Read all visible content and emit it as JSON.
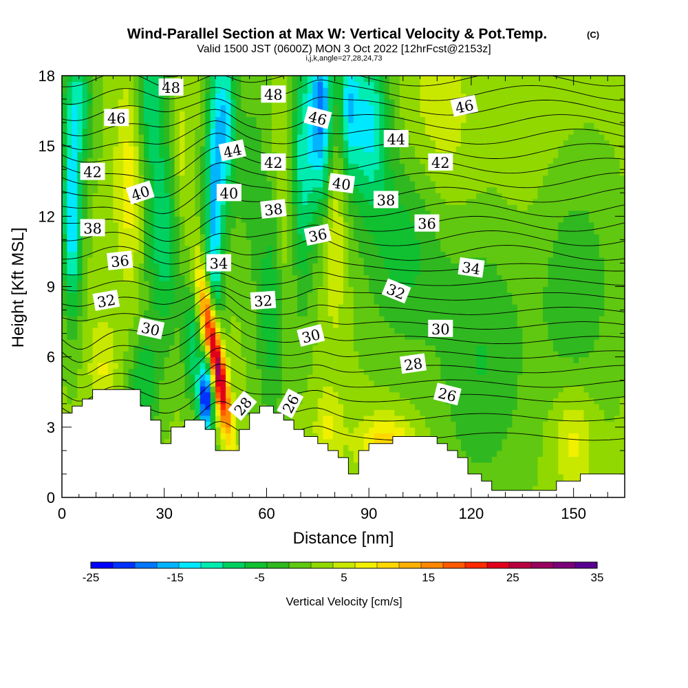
{
  "chart_data": {
    "type": "heatmap",
    "title": "Wind-Parallel Section at Max W: Vertical Velocity & Pot.Temp.",
    "title_mark": "(C)",
    "subtitle": "Valid 1500 JST (0600Z) MON 3 Oct 2022 [12hrFcst@2153z]",
    "subtitle2": "i,j,k,angle=27,28,24,73",
    "xlabel": "Distance [nm]",
    "ylabel": "Height [Kft MSL]",
    "xlim": [
      0,
      165
    ],
    "ylim": [
      0,
      18
    ],
    "x_ticks": [
      0,
      30,
      60,
      90,
      120,
      150
    ],
    "y_ticks": [
      0,
      3,
      6,
      9,
      12,
      15,
      18
    ],
    "colorbar": {
      "label": "Vertical Velocity [cm/s]",
      "min": -25,
      "max": 35,
      "tick_values": [
        -25,
        -15,
        -5,
        5,
        15,
        25,
        35
      ],
      "colors": [
        "#0000ff",
        "#0033ff",
        "#0077ff",
        "#00b4ff",
        "#00e8ff",
        "#00ecb0",
        "#00d060",
        "#10c030",
        "#30b820",
        "#60c810",
        "#90d800",
        "#c8e800",
        "#f0f000",
        "#ffd800",
        "#ffb000",
        "#ff8800",
        "#ff5a00",
        "#ff2a00",
        "#e0001c",
        "#b80040",
        "#980060",
        "#7a0078",
        "#5a0090"
      ]
    },
    "theta_contours": [
      26,
      28,
      30,
      32,
      34,
      36,
      38,
      40,
      42,
      44,
      46,
      48
    ],
    "contour_labels": [
      {
        "value": 48,
        "x": 32,
        "y": 17.5,
        "angle": 0
      },
      {
        "value": 48,
        "x": 62,
        "y": 17.2,
        "angle": 0
      },
      {
        "value": 46,
        "x": 16,
        "y": 16.2,
        "angle": 0
      },
      {
        "value": 46,
        "x": 75,
        "y": 16.2,
        "angle": 15
      },
      {
        "value": 46,
        "x": 118,
        "y": 16.7,
        "angle": -12
      },
      {
        "value": 44,
        "x": 50,
        "y": 14.8,
        "angle": -12
      },
      {
        "value": 44,
        "x": 98,
        "y": 15.3,
        "angle": 0
      },
      {
        "value": 42,
        "x": 9,
        "y": 13.9,
        "angle": 0
      },
      {
        "value": 42,
        "x": 62,
        "y": 14.3,
        "angle": 0
      },
      {
        "value": 42,
        "x": 111,
        "y": 14.3,
        "angle": 0
      },
      {
        "value": 40,
        "x": 23,
        "y": 13.0,
        "angle": -18
      },
      {
        "value": 40,
        "x": 49,
        "y": 13.0,
        "angle": 0
      },
      {
        "value": 40,
        "x": 82,
        "y": 13.4,
        "angle": 8
      },
      {
        "value": 38,
        "x": 9,
        "y": 11.5,
        "angle": 0
      },
      {
        "value": 38,
        "x": 62,
        "y": 12.3,
        "angle": -6
      },
      {
        "value": 38,
        "x": 95,
        "y": 12.7,
        "angle": 0
      },
      {
        "value": 36,
        "x": 17,
        "y": 10.1,
        "angle": -6
      },
      {
        "value": 36,
        "x": 75,
        "y": 11.2,
        "angle": -12
      },
      {
        "value": 36,
        "x": 107,
        "y": 11.7,
        "angle": 0
      },
      {
        "value": 34,
        "x": 46,
        "y": 10.0,
        "angle": 0
      },
      {
        "value": 34,
        "x": 120,
        "y": 9.8,
        "angle": 8
      },
      {
        "value": 32,
        "x": 13,
        "y": 8.4,
        "angle": -10
      },
      {
        "value": 32,
        "x": 59,
        "y": 8.4,
        "angle": -4
      },
      {
        "value": 32,
        "x": 98,
        "y": 8.8,
        "angle": 22
      },
      {
        "value": 30,
        "x": 26,
        "y": 7.2,
        "angle": 12
      },
      {
        "value": 30,
        "x": 73,
        "y": 6.9,
        "angle": -14
      },
      {
        "value": 30,
        "x": 111,
        "y": 7.2,
        "angle": 0
      },
      {
        "value": 28,
        "x": 53,
        "y": 3.9,
        "angle": -50
      },
      {
        "value": 28,
        "x": 103,
        "y": 5.7,
        "angle": -8
      },
      {
        "value": 26,
        "x": 67,
        "y": 4.0,
        "angle": -62
      },
      {
        "value": 26,
        "x": 113,
        "y": 4.4,
        "angle": 14
      }
    ],
    "terrain": [
      [
        0,
        3.6
      ],
      [
        3,
        3.6
      ],
      [
        3,
        3.9
      ],
      [
        6,
        3.9
      ],
      [
        6,
        4.2
      ],
      [
        9,
        4.2
      ],
      [
        9,
        4.6
      ],
      [
        23,
        4.6
      ],
      [
        23,
        3.9
      ],
      [
        26,
        3.9
      ],
      [
        26,
        3.3
      ],
      [
        29,
        3.3
      ],
      [
        29,
        2.3
      ],
      [
        32,
        2.3
      ],
      [
        32,
        3.0
      ],
      [
        36,
        3.0
      ],
      [
        36,
        3.3
      ],
      [
        42,
        3.3
      ],
      [
        42,
        2.9
      ],
      [
        45,
        2.9
      ],
      [
        45,
        2.0
      ],
      [
        52,
        2.0
      ],
      [
        52,
        2.9
      ],
      [
        55,
        2.9
      ],
      [
        55,
        3.6
      ],
      [
        58,
        3.6
      ],
      [
        58,
        3.9
      ],
      [
        62,
        3.9
      ],
      [
        62,
        3.6
      ],
      [
        65,
        3.6
      ],
      [
        65,
        3.3
      ],
      [
        68,
        3.3
      ],
      [
        68,
        2.9
      ],
      [
        71,
        2.9
      ],
      [
        71,
        2.6
      ],
      [
        75,
        2.6
      ],
      [
        75,
        2.3
      ],
      [
        78,
        2.3
      ],
      [
        78,
        2.0
      ],
      [
        81,
        2.0
      ],
      [
        81,
        1.7
      ],
      [
        84,
        1.7
      ],
      [
        84,
        1.0
      ],
      [
        87,
        1.0
      ],
      [
        87,
        2.0
      ],
      [
        90,
        2.0
      ],
      [
        90,
        2.3
      ],
      [
        97,
        2.3
      ],
      [
        97,
        2.6
      ],
      [
        110,
        2.6
      ],
      [
        110,
        2.3
      ],
      [
        113,
        2.3
      ],
      [
        113,
        2.0
      ],
      [
        116,
        2.0
      ],
      [
        116,
        1.7
      ],
      [
        119,
        1.7
      ],
      [
        119,
        1.0
      ],
      [
        123,
        1.0
      ],
      [
        123,
        0.7
      ],
      [
        126,
        0.7
      ],
      [
        126,
        0.3
      ],
      [
        145,
        0.3
      ],
      [
        145,
        0.7
      ],
      [
        152,
        0.7
      ],
      [
        152,
        1.0
      ],
      [
        165,
        1.0
      ]
    ]
  }
}
